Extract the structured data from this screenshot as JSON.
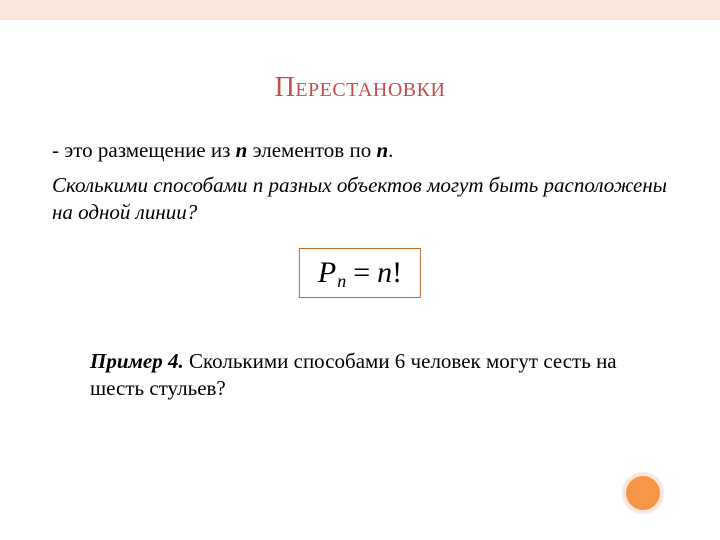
{
  "title": "Перестановки",
  "definition_prefix": "- это размещение из ",
  "definition_mid": " элементов по ",
  "definition_end": ".",
  "var_n": "n",
  "question": "Сколькими способами n разных объектов могут быть расположены на одной линии?",
  "formula_P": "P",
  "formula_sub": "n",
  "formula_eq": "=",
  "formula_rhs": "n",
  "formula_fact": "!",
  "example_label": "Пример 4.",
  "example_text": " Сколькими способами 6 человек могут сесть на шесть стульев?",
  "colors": {
    "accent": "#c0504d",
    "top_border": "#fde6dd",
    "formula_border": "#b86b28",
    "circle_fill": "#f79646",
    "circle_border": "#fde6dd",
    "text": "#000000",
    "background": "#ffffff"
  }
}
